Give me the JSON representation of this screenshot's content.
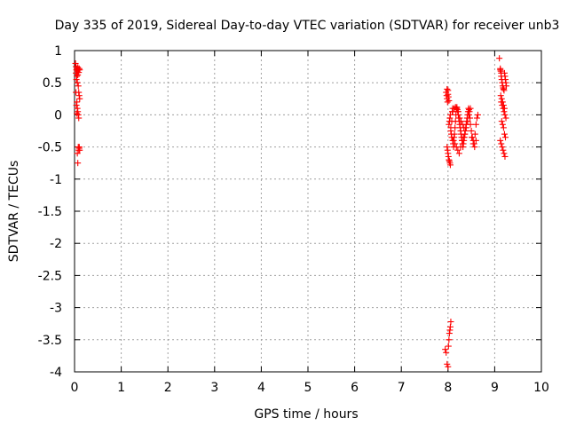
{
  "chart_data": {
    "type": "scatter",
    "title": "Day 335 of 2019, Sidereal Day-to-day VTEC variation (SDTVAR) for receiver unb3",
    "xlabel": "GPS time / hours",
    "ylabel": "SDTVAR / TECUs",
    "xlim": [
      0,
      10
    ],
    "ylim": [
      -4,
      1
    ],
    "xticks": [
      0,
      1,
      2,
      3,
      4,
      5,
      6,
      7,
      8,
      9,
      10
    ],
    "xtick_labels": [
      "0",
      "1",
      "2",
      "3",
      "4",
      "5",
      "6",
      "7",
      "8",
      "9",
      "10"
    ],
    "yticks": [
      1,
      0.5,
      0,
      -0.5,
      -1,
      -1.5,
      -2,
      -2.5,
      -3,
      -3.5,
      -4
    ],
    "ytick_labels": [
      "1",
      "0.5",
      "0",
      "-0.5",
      "-1",
      "-1.5",
      "-2",
      "-2.5",
      "-3",
      "-3.5",
      "-4"
    ],
    "grid": true,
    "marker": "+",
    "color": "#ff0000",
    "series": [
      {
        "name": "SDTVAR",
        "x": [
          0.02,
          0.03,
          0.03,
          0.04,
          0.04,
          0.05,
          0.05,
          0.06,
          0.06,
          0.07,
          0.07,
          0.08,
          0.08,
          0.09,
          0.09,
          0.1,
          0.1,
          0.11,
          0.11,
          0.05,
          0.06,
          0.07,
          0.08,
          0.09,
          0.1,
          0.11,
          0.08,
          0.09,
          0.1,
          0.06,
          0.07,
          0.05,
          0.04,
          0.03,
          7.96,
          7.97,
          7.98,
          7.98,
          7.99,
          8.0,
          8.0,
          8.01,
          8.02,
          8.02,
          8.03,
          8.04,
          8.05,
          8.06,
          8.06,
          8.07,
          8.08,
          8.08,
          8.09,
          8.1,
          8.1,
          8.11,
          8.12,
          8.13,
          8.14,
          8.15,
          8.16,
          8.17,
          8.18,
          8.19,
          8.2,
          8.21,
          8.22,
          8.23,
          8.24,
          8.25,
          8.26,
          8.27,
          8.28,
          8.29,
          8.3,
          8.31,
          8.32,
          8.33,
          8.34,
          8.35,
          8.36,
          8.37,
          8.38,
          8.39,
          8.4,
          8.41,
          8.42,
          8.43,
          8.44,
          8.45,
          8.46,
          8.47,
          8.48,
          8.5,
          8.52,
          8.54,
          8.56,
          8.58,
          8.6,
          8.62,
          8.64,
          7.98,
          8.0,
          8.02,
          8.04,
          7.99,
          8.01,
          8.03,
          8.05,
          8.12,
          8.15,
          8.18,
          8.21,
          8.24,
          8.27,
          8.3,
          8.33,
          8.36,
          8.39,
          8.42,
          8.45,
          8.48,
          8.51,
          8.54,
          8.57,
          8.6,
          8.1,
          8.13,
          8.16,
          8.19,
          8.22,
          8.25,
          8.28,
          8.31,
          8.34,
          7.94,
          7.96,
          7.98,
          8.0,
          8.01,
          8.02,
          8.03,
          8.04,
          8.05,
          8.06,
          9.1,
          9.12,
          9.13,
          9.14,
          9.15,
          9.16,
          9.17,
          9.18,
          9.19,
          9.2,
          9.21,
          9.22,
          9.23,
          9.24,
          9.25,
          9.14,
          9.16,
          9.18,
          9.2,
          9.22,
          9.24,
          9.15,
          9.17,
          9.19,
          9.21,
          9.23,
          9.12,
          9.14,
          9.16,
          9.18,
          9.2,
          9.22,
          9.13,
          9.15,
          9.17,
          9.19,
          9.21,
          9.12,
          9.14
        ],
        "y": [
          0.8,
          0.75,
          0.65,
          0.7,
          0.55,
          0.72,
          0.6,
          0.68,
          0.5,
          0.74,
          0.62,
          0.7,
          0.45,
          0.66,
          0.35,
          0.72,
          0.3,
          0.7,
          0.25,
          0.2,
          0.1,
          0.05,
          0.0,
          -0.05,
          -0.5,
          -0.55,
          -0.5,
          -0.55,
          -0.52,
          -0.6,
          -0.75,
          0.02,
          0.15,
          0.35,
          0.35,
          0.3,
          0.25,
          0.4,
          0.2,
          0.38,
          0.32,
          0.28,
          0.22,
          -0.15,
          -0.1,
          -0.05,
          0.0,
          -0.2,
          -0.25,
          -0.3,
          -0.35,
          -0.1,
          0.05,
          0.1,
          -0.4,
          -0.45,
          -0.5,
          -0.35,
          -0.3,
          -0.2,
          -0.1,
          0.0,
          0.1,
          0.12,
          0.08,
          0.05,
          0.0,
          -0.05,
          -0.1,
          -0.15,
          -0.2,
          -0.25,
          -0.3,
          -0.35,
          -0.4,
          -0.45,
          -0.5,
          -0.45,
          -0.4,
          -0.35,
          -0.3,
          -0.25,
          -0.2,
          -0.15,
          -0.1,
          -0.05,
          0.0,
          0.05,
          0.1,
          0.08,
          0.05,
          -0.05,
          -0.15,
          -0.25,
          -0.35,
          -0.4,
          -0.45,
          -0.3,
          -0.15,
          -0.05,
          0.0,
          -0.5,
          -0.6,
          -0.7,
          -0.75,
          -0.55,
          -0.65,
          -0.72,
          -0.78,
          -0.4,
          -0.45,
          -0.5,
          -0.55,
          -0.6,
          -0.5,
          -0.4,
          -0.35,
          -0.3,
          -0.2,
          -0.1,
          0.0,
          0.1,
          -0.35,
          -0.45,
          -0.5,
          -0.4,
          0.05,
          0.1,
          0.12,
          0.1,
          0.05,
          -0.05,
          -0.1,
          -0.15,
          -0.2,
          -3.65,
          -3.7,
          -3.88,
          -3.92,
          -3.6,
          -3.5,
          -3.4,
          -3.35,
          -3.3,
          -3.22,
          0.88,
          0.72,
          0.68,
          0.6,
          0.55,
          0.5,
          0.45,
          0.42,
          0.4,
          0.38,
          0.65,
          0.6,
          0.55,
          0.5,
          0.45,
          0.2,
          0.15,
          0.1,
          0.05,
          0.0,
          -0.05,
          -0.1,
          -0.15,
          -0.2,
          -0.3,
          -0.35,
          -0.4,
          -0.45,
          -0.5,
          -0.55,
          -0.6,
          -0.65,
          0.3,
          0.25,
          0.2,
          0.15,
          0.1,
          0.7,
          0.65
        ]
      }
    ]
  }
}
